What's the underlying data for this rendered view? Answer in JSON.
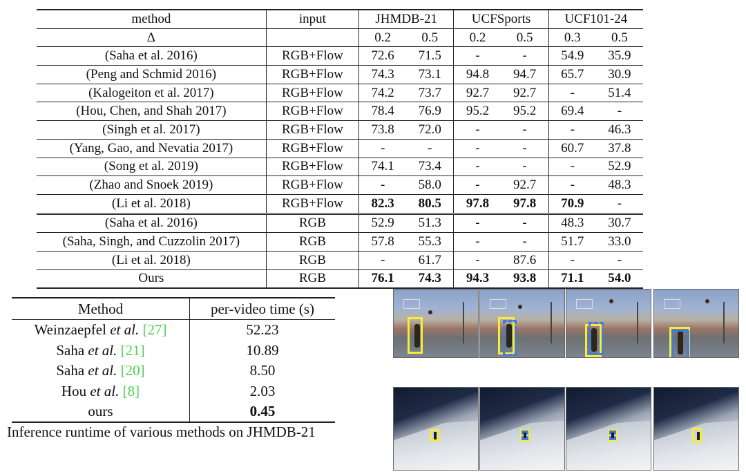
{
  "main_table": {
    "header1": [
      "method",
      "input",
      "JHMDB-21",
      "UCFSports",
      "UCF101-24"
    ],
    "header2": [
      "Δ",
      "",
      "0.2",
      "0.5",
      "0.2",
      "0.5",
      "0.3",
      "0.5"
    ],
    "rows_flow": [
      {
        "method": "(Saha et al. 2016)",
        "input": "RGB+Flow",
        "vals": [
          "72.6",
          "71.5",
          "-",
          "-",
          "54.9",
          "35.9"
        ],
        "bold": []
      },
      {
        "method": "(Peng and Schmid 2016)",
        "input": "RGB+Flow",
        "vals": [
          "74.3",
          "73.1",
          "94.8",
          "94.7",
          "65.7",
          "30.9"
        ],
        "bold": []
      },
      {
        "method": "(Kalogeiton et al. 2017)",
        "input": "RGB+Flow",
        "vals": [
          "74.2",
          "73.7",
          "92.7",
          "92.7",
          "-",
          "51.4"
        ],
        "bold": []
      },
      {
        "method": "(Hou, Chen, and Shah 2017)",
        "input": "RGB+Flow",
        "vals": [
          "78.4",
          "76.9",
          "95.2",
          "95.2",
          "69.4",
          "-"
        ],
        "bold": []
      },
      {
        "method": "(Singh et al. 2017)",
        "input": "RGB+Flow",
        "vals": [
          "73.8",
          "72.0",
          "-",
          "-",
          "-",
          "46.3"
        ],
        "bold": []
      },
      {
        "method": "(Yang, Gao, and Nevatia 2017)",
        "input": "RGB+Flow",
        "vals": [
          "-",
          "-",
          "-",
          "-",
          "60.7",
          "37.8"
        ],
        "bold": []
      },
      {
        "method": "(Song et al. 2019)",
        "input": "RGB+Flow",
        "vals": [
          "74.1",
          "73.4",
          "-",
          "-",
          "-",
          "52.9"
        ],
        "bold": []
      },
      {
        "method": "(Zhao and Snoek 2019)",
        "input": "RGB+Flow",
        "vals": [
          "-",
          "58.0",
          "-",
          "92.7",
          "-",
          "48.3"
        ],
        "bold": []
      },
      {
        "method": "(Li et al. 2018)",
        "input": "RGB+Flow",
        "vals": [
          "82.3",
          "80.5",
          "97.8",
          "97.8",
          "70.9",
          "-"
        ],
        "bold": [
          0,
          1,
          2,
          3,
          4
        ]
      }
    ],
    "rows_rgb": [
      {
        "method": "(Saha et al. 2016)",
        "input": "RGB",
        "vals": [
          "52.9",
          "51.3",
          "-",
          "-",
          "48.3",
          "30.7"
        ],
        "bold": []
      },
      {
        "method": "(Saha, Singh, and Cuzzolin 2017)",
        "input": "RGB",
        "vals": [
          "57.8",
          "55.3",
          "-",
          "-",
          "51.7",
          "33.0"
        ],
        "bold": []
      },
      {
        "method": "(Li et al. 2018)",
        "input": "RGB",
        "vals": [
          "-",
          "61.7",
          "-",
          "87.6",
          "-",
          "-"
        ],
        "bold": []
      },
      {
        "method": "Ours",
        "input": "RGB",
        "vals": [
          "76.1",
          "74.3",
          "94.3",
          "93.8",
          "71.1",
          "54.0"
        ],
        "bold": [
          0,
          1,
          2,
          3,
          4,
          5
        ]
      }
    ]
  },
  "runtime_table": {
    "header": [
      "Method",
      "per-video time (s)"
    ],
    "rows": [
      {
        "name": "Weinzaepfel",
        "etal": "et al.",
        "cite": "[27]",
        "time": "52.23",
        "bold": false
      },
      {
        "name": "Saha",
        "etal": "et al.",
        "cite": "[21]",
        "time": "10.89",
        "bold": false
      },
      {
        "name": "Saha",
        "etal": "et al.",
        "cite": "[20]",
        "time": "8.50",
        "bold": false
      },
      {
        "name": "Hou",
        "etal": "et al.",
        "cite": "[8]",
        "time": "2.03",
        "bold": false
      },
      {
        "name": "ours",
        "etal": "",
        "cite": "",
        "time": "0.45",
        "bold": true
      }
    ],
    "caption": "Inference runtime of various methods on JHMDB-21"
  },
  "box_colors": {
    "ground_truth": "#f5ec3b",
    "prediction": "#3c7bea"
  }
}
